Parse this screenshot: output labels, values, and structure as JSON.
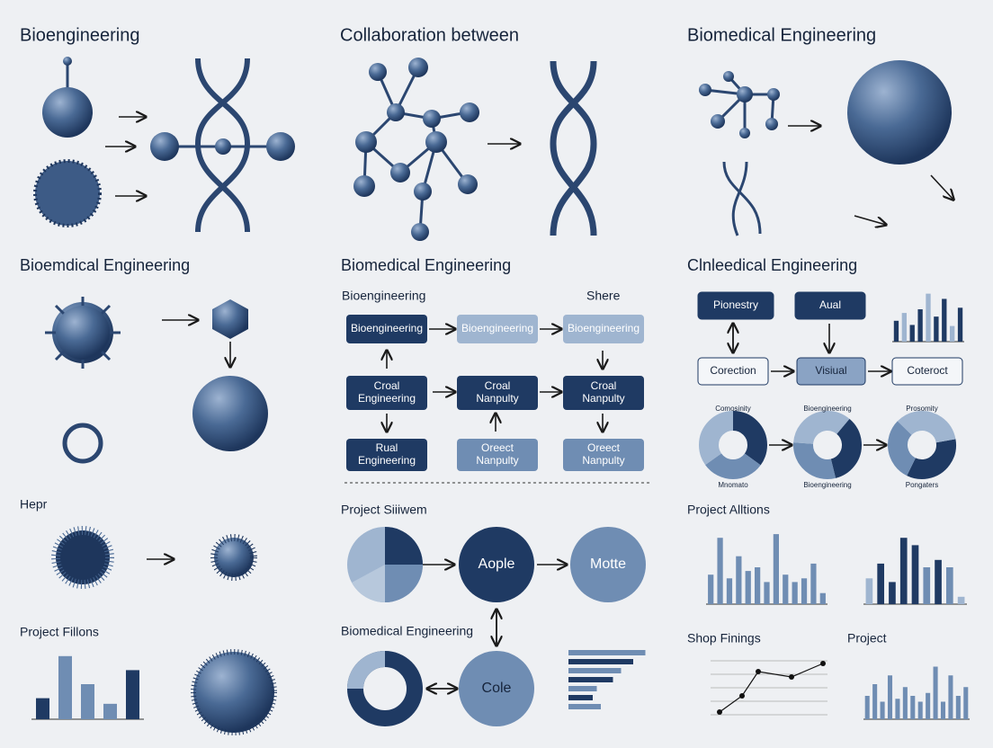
{
  "titles": [
    "Bioengineering",
    "Collaboration between",
    "Biomedical Engineering",
    "Bioemdical Engineering",
    "Biomedical Engineering",
    "Clnleedical Engineering",
    "Hepr",
    "Project Fillons",
    "Project Siiiwem",
    "Biomedical Engineering",
    "Project Alltions",
    "Shop Finings",
    "Project"
  ],
  "flow_left": {
    "labels": [
      "Bioengineering",
      "Shere"
    ],
    "boxes": [
      "Bioengineering",
      "Bioengineering",
      "Bioengineering",
      "Croal Engineering",
      "Croal Nanpulty",
      "Croal Nanpulty",
      "Rual Engineering",
      "Oreect Nanpulty",
      "Oreect Nanpulty"
    ]
  },
  "flow_right": {
    "boxes": [
      "Pionestry",
      "Aual",
      "Corection",
      "Visiual",
      "Coteroct"
    ],
    "donut_labels": [
      "Comosinity",
      "Bioengineering",
      "Prosomity",
      "Mnomato",
      "Bioengineering",
      "Pongaters"
    ]
  },
  "circles": [
    "Aople",
    "Motte",
    "Cole"
  ],
  "charts": {
    "top_bars": [
      40,
      55,
      32,
      62,
      92,
      48,
      82,
      30,
      65
    ],
    "fillons": [
      30,
      90,
      50,
      22,
      70
    ],
    "alltions_a": [
      40,
      90,
      35,
      65,
      45,
      50,
      30,
      95,
      40,
      30,
      35,
      55,
      15
    ],
    "alltions_b": [
      35,
      55,
      30,
      90,
      80,
      50,
      60,
      50,
      10
    ],
    "project": [
      40,
      60,
      30,
      75,
      35,
      55,
      40,
      30,
      45,
      90,
      30,
      75,
      40,
      55
    ],
    "hbars": [
      95,
      80,
      65,
      55,
      35,
      30,
      40
    ],
    "shop_line": [
      5,
      35,
      80,
      70,
      95
    ]
  }
}
